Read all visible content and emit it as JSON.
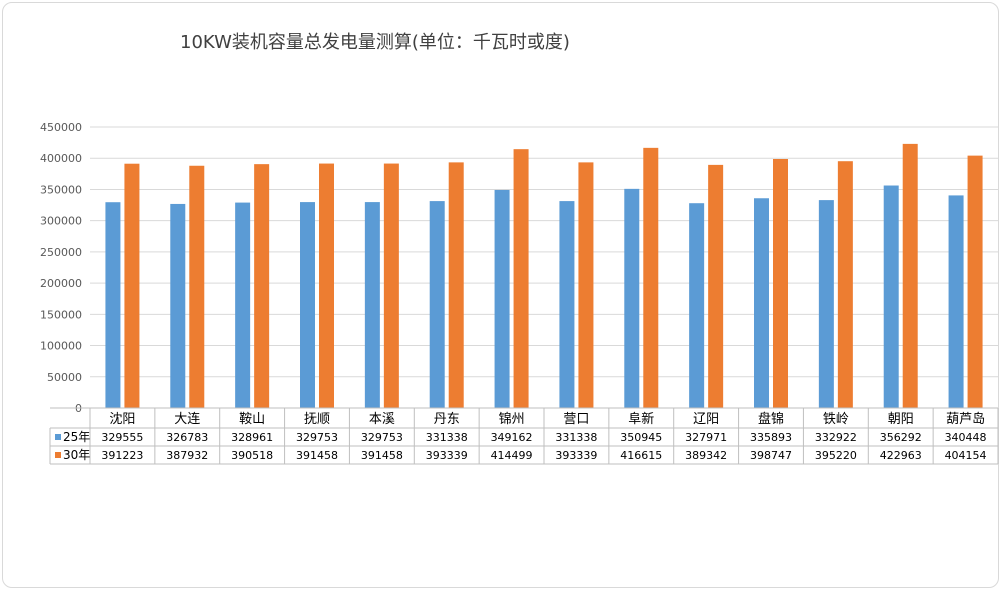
{
  "chart_data": {
    "type": "bar",
    "title": "10KW装机容量总发电量测算(单位：千瓦时或度)",
    "categories": [
      "沈阳",
      "大连",
      "鞍山",
      "抚顺",
      "本溪",
      "丹东",
      "锦州",
      "营口",
      "阜新",
      "辽阳",
      "盘锦",
      "铁岭",
      "朝阳",
      "葫芦岛"
    ],
    "series": [
      {
        "name": "25年",
        "color": "#5b9bd5",
        "values": [
          329555,
          326783,
          328961,
          329753,
          329753,
          331338,
          349162,
          331338,
          350945,
          327971,
          335893,
          332922,
          356292,
          340448
        ]
      },
      {
        "name": "30年",
        "color": "#ed7d31",
        "values": [
          391223,
          387932,
          390518,
          391458,
          391458,
          393339,
          414499,
          393339,
          416615,
          389342,
          398747,
          395220,
          422963,
          404154
        ]
      }
    ],
    "yticks": [
      "0",
      "50000",
      "100000",
      "150000",
      "200000",
      "250000",
      "300000",
      "350000",
      "400000",
      "450000"
    ],
    "ylim": [
      0,
      450000
    ],
    "grid": true,
    "legend": "data-table"
  }
}
